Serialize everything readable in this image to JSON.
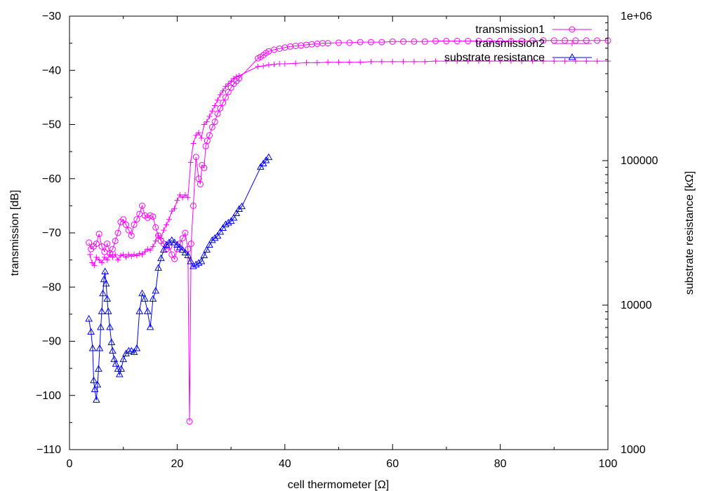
{
  "chart_data": {
    "type": "scatter",
    "title": "",
    "xlabel": "cell thermometer [Ω]",
    "ylabel": "transmission [dB]",
    "y2label": "substrate resistance [kΩ]",
    "xlim": [
      0,
      100
    ],
    "ylim": [
      -110,
      -30
    ],
    "y2lim": [
      1000,
      1000000
    ],
    "y2scale": "log",
    "x_ticks": [
      "0",
      "20",
      "40",
      "60",
      "80",
      "100"
    ],
    "y_ticks": [
      "−110",
      "−100",
      "−90",
      "−80",
      "−70",
      "−60",
      "−50",
      "−40",
      "−30"
    ],
    "y2_ticks": [
      "1000",
      "10000",
      "100000",
      "1e+06"
    ],
    "grid": false,
    "legend_position": "top-right",
    "series": [
      {
        "name": "transmission1",
        "axis": "left",
        "color": "#ff00ff",
        "marker": "circle",
        "points": [
          [
            3.6,
            -71.8
          ],
          [
            4.0,
            -73.0
          ],
          [
            4.5,
            -72.5
          ],
          [
            5.0,
            -72.0
          ],
          [
            5.5,
            -70.2
          ],
          [
            6.0,
            -72.5
          ],
          [
            6.5,
            -73.5
          ],
          [
            7.0,
            -72.0
          ],
          [
            7.5,
            -73.8
          ],
          [
            8.0,
            -73.0
          ],
          [
            8.5,
            -71.5
          ],
          [
            9.0,
            -70.0
          ],
          [
            9.5,
            -68.0
          ],
          [
            10.0,
            -67.5
          ],
          [
            10.5,
            -68.5
          ],
          [
            11.0,
            -69.5
          ],
          [
            11.5,
            -70.5
          ],
          [
            12.0,
            -68.5
          ],
          [
            12.5,
            -67.5
          ],
          [
            13.0,
            -66.5
          ],
          [
            13.5,
            -65.0
          ],
          [
            14.0,
            -66.8
          ],
          [
            14.5,
            -67.2
          ],
          [
            15.0,
            -66.8
          ],
          [
            15.5,
            -67.0
          ],
          [
            16.0,
            -69.0
          ],
          [
            16.5,
            -70.5
          ],
          [
            17.0,
            -71.5
          ],
          [
            17.5,
            -72.0
          ],
          [
            18.0,
            -73.0
          ],
          [
            18.5,
            -72.5
          ],
          [
            19.0,
            -74.0
          ],
          [
            19.5,
            -74.8
          ],
          [
            20.0,
            -73.0
          ],
          [
            20.5,
            -72.0
          ],
          [
            21.0,
            -71.0
          ],
          [
            21.5,
            -70.0
          ],
          [
            22.0,
            -73.0
          ],
          [
            22.3,
            -104.8
          ],
          [
            22.6,
            -72.0
          ],
          [
            23.0,
            -65.0
          ],
          [
            23.5,
            -56.0
          ],
          [
            24.0,
            -60.0
          ],
          [
            24.3,
            -61.0
          ],
          [
            24.6,
            -57.5
          ],
          [
            25.0,
            -58.0
          ],
          [
            25.3,
            -54.0
          ],
          [
            25.6,
            -53.0
          ],
          [
            26.0,
            -52.0
          ],
          [
            26.5,
            -50.5
          ],
          [
            27.0,
            -49.5
          ],
          [
            27.5,
            -48.0
          ],
          [
            28.0,
            -47.0
          ],
          [
            28.5,
            -46.0
          ],
          [
            29.0,
            -45.0
          ],
          [
            29.5,
            -44.0
          ],
          [
            30.0,
            -43.2
          ],
          [
            30.5,
            -42.5
          ],
          [
            31.0,
            -42.0
          ],
          [
            31.5,
            -41.5
          ],
          [
            35.0,
            -37.8
          ],
          [
            35.5,
            -37.5
          ],
          [
            36.0,
            -37.2
          ],
          [
            36.5,
            -36.8
          ],
          [
            37.0,
            -36.5
          ],
          [
            38.0,
            -36.2
          ],
          [
            39.0,
            -36.0
          ],
          [
            40.0,
            -35.8
          ],
          [
            41.0,
            -35.6
          ],
          [
            42.0,
            -35.5
          ],
          [
            43.0,
            -35.4
          ],
          [
            44.0,
            -35.3
          ],
          [
            45.0,
            -35.2
          ],
          [
            46.0,
            -35.1
          ],
          [
            47.0,
            -35.0
          ],
          [
            48.0,
            -35.0
          ],
          [
            50.0,
            -34.9
          ],
          [
            52.0,
            -34.9
          ],
          [
            54.0,
            -34.8
          ],
          [
            56.0,
            -34.8
          ],
          [
            58.0,
            -34.8
          ],
          [
            60.0,
            -34.7
          ],
          [
            62.0,
            -34.7
          ],
          [
            64.0,
            -34.7
          ],
          [
            66.0,
            -34.7
          ],
          [
            68.0,
            -34.6
          ],
          [
            70.0,
            -34.6
          ],
          [
            72.0,
            -34.6
          ],
          [
            74.0,
            -34.6
          ],
          [
            76.0,
            -34.6
          ],
          [
            78.0,
            -34.6
          ],
          [
            80.0,
            -34.6
          ],
          [
            82.0,
            -34.6
          ],
          [
            84.0,
            -34.6
          ],
          [
            86.0,
            -34.5
          ],
          [
            88.0,
            -34.5
          ],
          [
            90.0,
            -34.5
          ],
          [
            92.0,
            -34.5
          ],
          [
            94.0,
            -34.5
          ],
          [
            96.0,
            -34.5
          ],
          [
            98.0,
            -34.5
          ],
          [
            100.0,
            -34.5
          ]
        ]
      },
      {
        "name": "transmission2",
        "axis": "left",
        "color": "#ff00ff",
        "marker": "plus",
        "points": [
          [
            3.8,
            -74.0
          ],
          [
            4.2,
            -75.5
          ],
          [
            4.6,
            -76.0
          ],
          [
            5.0,
            -74.5
          ],
          [
            5.5,
            -75.0
          ],
          [
            6.0,
            -75.5
          ],
          [
            6.5,
            -74.5
          ],
          [
            7.0,
            -75.0
          ],
          [
            7.5,
            -74.0
          ],
          [
            8.0,
            -74.5
          ],
          [
            8.5,
            -74.0
          ],
          [
            9.0,
            -75.0
          ],
          [
            9.5,
            -74.2
          ],
          [
            10.0,
            -74.0
          ],
          [
            10.5,
            -74.5
          ],
          [
            11.0,
            -74.0
          ],
          [
            11.5,
            -74.3
          ],
          [
            12.0,
            -74.0
          ],
          [
            12.5,
            -74.2
          ],
          [
            13.0,
            -73.8
          ],
          [
            13.5,
            -74.0
          ],
          [
            14.0,
            -73.5
          ],
          [
            14.5,
            -73.0
          ],
          [
            15.0,
            -73.2
          ],
          [
            15.5,
            -72.5
          ],
          [
            16.0,
            -71.5
          ],
          [
            16.5,
            -70.5
          ],
          [
            17.0,
            -71.0
          ],
          [
            17.5,
            -69.5
          ],
          [
            18.0,
            -68.5
          ],
          [
            18.5,
            -67.5
          ],
          [
            19.0,
            -66.0
          ],
          [
            19.5,
            -65.5
          ],
          [
            20.0,
            -64.0
          ],
          [
            20.5,
            -63.0
          ],
          [
            21.0,
            -63.5
          ],
          [
            21.5,
            -63.0
          ],
          [
            22.0,
            -63.5
          ],
          [
            22.5,
            -57.0
          ],
          [
            23.0,
            -53.5
          ],
          [
            23.5,
            -52.0
          ],
          [
            24.0,
            -51.5
          ],
          [
            24.5,
            -52.5
          ],
          [
            25.0,
            -50.0
          ],
          [
            25.5,
            -49.5
          ],
          [
            26.0,
            -48.5
          ],
          [
            26.5,
            -47.5
          ],
          [
            27.0,
            -46.5
          ],
          [
            27.5,
            -45.5
          ],
          [
            28.0,
            -44.5
          ],
          [
            28.5,
            -43.8
          ],
          [
            29.0,
            -43.0
          ],
          [
            29.5,
            -42.5
          ],
          [
            30.0,
            -42.0
          ],
          [
            30.5,
            -41.5
          ],
          [
            31.0,
            -41.2
          ],
          [
            31.5,
            -41.0
          ],
          [
            35.0,
            -39.3
          ],
          [
            36.0,
            -39.2
          ],
          [
            37.0,
            -39.0
          ],
          [
            38.0,
            -38.9
          ],
          [
            39.0,
            -38.8
          ],
          [
            40.0,
            -38.8
          ],
          [
            42.0,
            -38.7
          ],
          [
            44.0,
            -38.6
          ],
          [
            46.0,
            -38.6
          ],
          [
            48.0,
            -38.5
          ],
          [
            50.0,
            -38.5
          ],
          [
            52.0,
            -38.5
          ],
          [
            54.0,
            -38.5
          ],
          [
            56.0,
            -38.4
          ],
          [
            58.0,
            -38.4
          ],
          [
            60.0,
            -38.4
          ],
          [
            62.0,
            -38.4
          ],
          [
            64.0,
            -38.4
          ],
          [
            66.0,
            -38.4
          ],
          [
            68.0,
            -38.3
          ],
          [
            70.0,
            -38.3
          ],
          [
            72.0,
            -38.3
          ],
          [
            74.0,
            -38.3
          ],
          [
            76.0,
            -38.3
          ],
          [
            78.0,
            -38.3
          ],
          [
            80.0,
            -38.3
          ],
          [
            82.0,
            -38.3
          ],
          [
            84.0,
            -38.3
          ],
          [
            86.0,
            -38.3
          ],
          [
            88.0,
            -38.3
          ],
          [
            90.0,
            -38.3
          ],
          [
            92.0,
            -38.3
          ],
          [
            94.0,
            -38.3
          ],
          [
            96.0,
            -38.3
          ],
          [
            98.0,
            -38.3
          ],
          [
            100.0,
            -38.3
          ]
        ]
      },
      {
        "name": "substrate resistance",
        "axis": "right",
        "color": "#0000ff",
        "marker": "triangle",
        "points": [
          [
            3.6,
            8000
          ],
          [
            4.0,
            6500
          ],
          [
            4.3,
            5000
          ],
          [
            4.5,
            3000
          ],
          [
            4.7,
            2600
          ],
          [
            5.0,
            2200
          ],
          [
            5.2,
            2800
          ],
          [
            5.4,
            3600
          ],
          [
            5.6,
            5000
          ],
          [
            5.8,
            7000
          ],
          [
            6.0,
            9000
          ],
          [
            6.2,
            12000
          ],
          [
            6.4,
            15000
          ],
          [
            6.6,
            17000
          ],
          [
            6.8,
            14000
          ],
          [
            7.0,
            11000
          ],
          [
            7.2,
            9000
          ],
          [
            7.5,
            7000
          ],
          [
            7.8,
            5500
          ],
          [
            8.0,
            4800
          ],
          [
            8.3,
            4200
          ],
          [
            8.6,
            3900
          ],
          [
            9.0,
            3600
          ],
          [
            9.3,
            3300
          ],
          [
            9.6,
            3600
          ],
          [
            10.0,
            4200
          ],
          [
            10.5,
            4600
          ],
          [
            11.0,
            4800
          ],
          [
            11.5,
            4800
          ],
          [
            12.0,
            4700
          ],
          [
            12.5,
            5000
          ],
          [
            13.0,
            9000
          ],
          [
            13.5,
            12000
          ],
          [
            14.0,
            11000
          ],
          [
            14.5,
            9000
          ],
          [
            15.0,
            7000
          ],
          [
            15.5,
            11000
          ],
          [
            16.0,
            12500
          ],
          [
            16.5,
            18000
          ],
          [
            17.0,
            21000
          ],
          [
            17.5,
            24000
          ],
          [
            18.0,
            26000
          ],
          [
            18.5,
            27000
          ],
          [
            19.0,
            28000
          ],
          [
            19.5,
            27000
          ],
          [
            20.0,
            26000
          ],
          [
            20.5,
            25000
          ],
          [
            21.0,
            24000
          ],
          [
            21.5,
            23000
          ],
          [
            22.0,
            22000
          ],
          [
            22.5,
            20000
          ],
          [
            23.0,
            18500
          ],
          [
            23.5,
            19000
          ],
          [
            24.0,
            19500
          ],
          [
            24.5,
            20000
          ],
          [
            25.0,
            22000
          ],
          [
            25.5,
            24000
          ],
          [
            26.0,
            26000
          ],
          [
            26.5,
            28000
          ],
          [
            27.0,
            29000
          ],
          [
            27.5,
            30000
          ],
          [
            28.0,
            32000
          ],
          [
            28.5,
            34000
          ],
          [
            29.0,
            36000
          ],
          [
            29.5,
            37000
          ],
          [
            30.0,
            38000
          ],
          [
            30.5,
            40000
          ],
          [
            31.0,
            43000
          ],
          [
            31.5,
            46000
          ],
          [
            32.0,
            48000
          ],
          [
            35.5,
            90000
          ],
          [
            36.0,
            95000
          ],
          [
            36.5,
            100000
          ],
          [
            37.0,
            105000
          ]
        ]
      }
    ]
  }
}
